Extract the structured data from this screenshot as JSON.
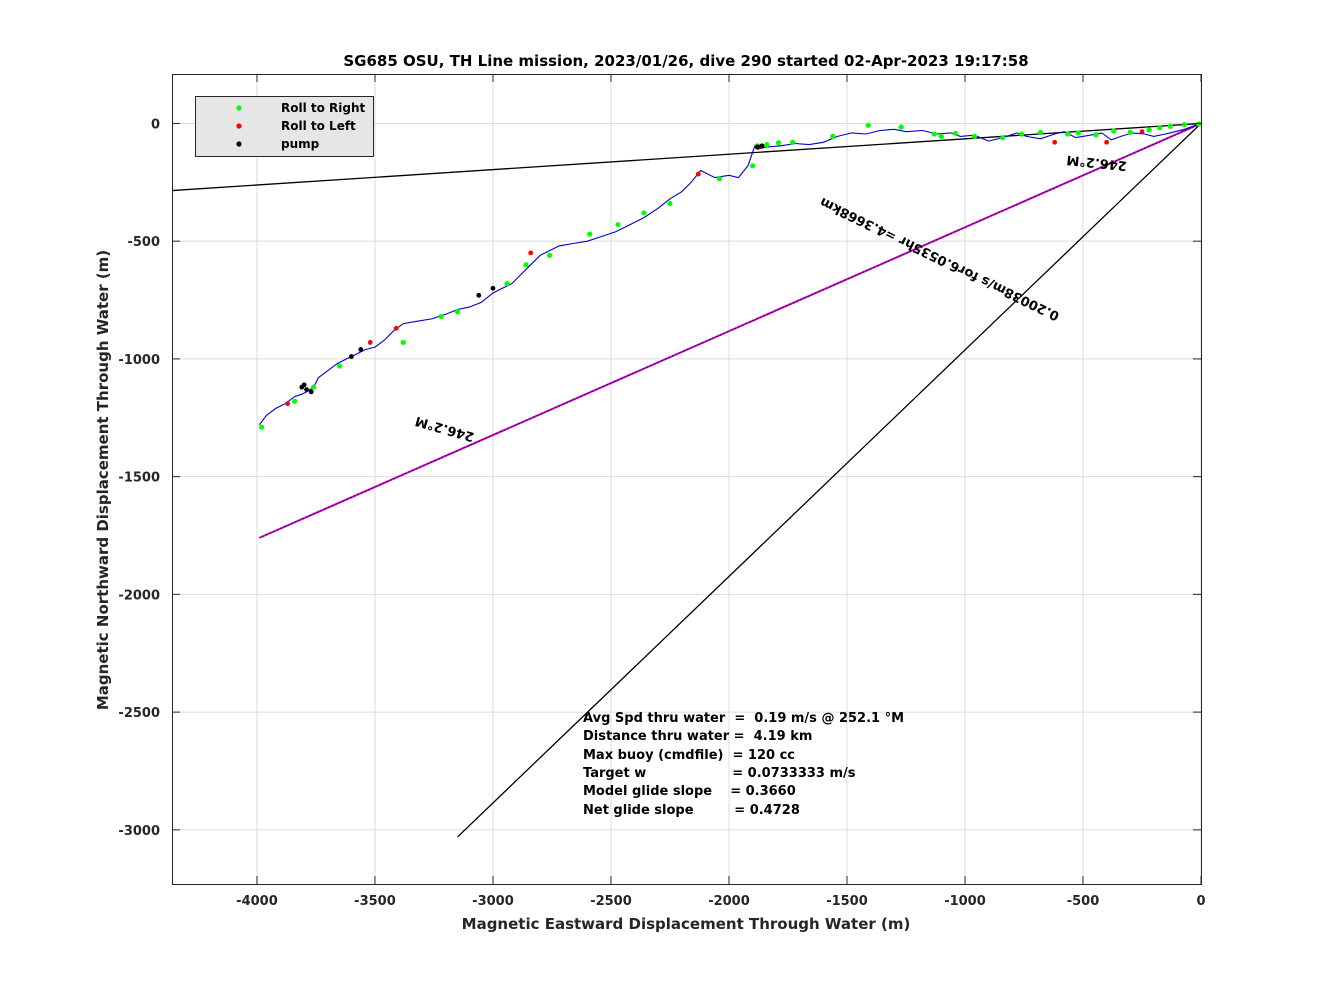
{
  "chart_data": {
    "type": "line",
    "title": "SG685 OSU, TH Line mission, 2023/01/26, dive 290 started 02-Apr-2023 19:17:58",
    "xlabel": "Magnetic Eastward Displacement Through Water (m)",
    "ylabel": "Magnetic Northward Displacement Through Water (m)",
    "xlim": [
      -4360,
      0
    ],
    "ylim": [
      -3230,
      210
    ],
    "grid": true,
    "x_ticks": [
      "-4000",
      "-3500",
      "-3000",
      "-2500",
      "-2000",
      "-1500",
      "-1000",
      "-500",
      "0"
    ],
    "y_ticks": [
      "0",
      "-500",
      "-1000",
      "-1500",
      "-2000",
      "-2500",
      "-3000"
    ],
    "legend": {
      "placement": "top-left",
      "entries": [
        {
          "label": "Roll to Right",
          "color": "#00ff00"
        },
        {
          "label": "Roll to Left",
          "color": "#ff0000"
        },
        {
          "label": "pump",
          "color": "#000000"
        }
      ]
    },
    "colors": {
      "track": "#0000cc",
      "course": "#cc00cc",
      "reference": "#000000"
    },
    "track": {
      "x": [
        0,
        -30,
        -70,
        -110,
        -150,
        -200,
        -240,
        -290,
        -340,
        -380,
        -420,
        -470,
        -530,
        -580,
        -620,
        -680,
        -740,
        -780,
        -840,
        -900,
        -960,
        -1020,
        -1060,
        -1120,
        -1180,
        -1250,
        -1300,
        -1360,
        -1420,
        -1480,
        -1540,
        -1600,
        -1660,
        -1720,
        -1780,
        -1840,
        -1880,
        -1890,
        -1920,
        -1960,
        -2000,
        -2060,
        -2120,
        -2160,
        -2200,
        -2250,
        -2300,
        -2360,
        -2420,
        -2480,
        -2540,
        -2600,
        -2660,
        -2720,
        -2760,
        -2800,
        -2840,
        -2880,
        -2920,
        -2960,
        -3000,
        -3050,
        -3100,
        -3150,
        -3200,
        -3260,
        -3320,
        -3380,
        -3420,
        -3460,
        -3500,
        -3540,
        -3580,
        -3620,
        -3660,
        -3700,
        -3740,
        -3760,
        -3790,
        -3810,
        -3840,
        -3880,
        -3920,
        -3960,
        -3990
      ],
      "y": [
        0,
        -10,
        -25,
        -35,
        -45,
        -55,
        -45,
        -40,
        -55,
        -70,
        -40,
        -50,
        -60,
        -35,
        -45,
        -65,
        -55,
        -40,
        -60,
        -75,
        -50,
        -55,
        -40,
        -45,
        -30,
        -35,
        -25,
        -30,
        -45,
        -40,
        -55,
        -80,
        -90,
        -85,
        -95,
        -100,
        -110,
        -95,
        -180,
        -230,
        -220,
        -230,
        -200,
        -250,
        -290,
        -320,
        -360,
        -400,
        -430,
        -460,
        -480,
        -500,
        -510,
        -520,
        -540,
        -560,
        -600,
        -640,
        -680,
        -700,
        -720,
        -760,
        -780,
        -790,
        -810,
        -830,
        -840,
        -850,
        -880,
        -920,
        -950,
        -960,
        -980,
        -1000,
        -1020,
        -1050,
        -1080,
        -1120,
        -1140,
        -1150,
        -1160,
        -1190,
        -1210,
        -1240,
        -1280
      ]
    },
    "roll_right": {
      "x": [
        -10,
        -70,
        -130,
        -175,
        -220,
        -300,
        -370,
        -445,
        -520,
        -565,
        -680,
        -760,
        -840,
        -960,
        -1040,
        -1100,
        -1130,
        -1270,
        -1410,
        -1560,
        -1730,
        -1790,
        -1840,
        -1880,
        -1900,
        -2040,
        -2250,
        -2360,
        -2470,
        -2590,
        -2760,
        -2860,
        -2940,
        -3150,
        -3220,
        -3380,
        -3650,
        -3760,
        -3840,
        -3980
      ],
      "y": [
        -2,
        -5,
        -12,
        -18,
        -28,
        -38,
        -32,
        -48,
        -40,
        -45,
        -38,
        -45,
        -60,
        -55,
        -42,
        -55,
        -45,
        -15,
        -8,
        -55,
        -80,
        -82,
        -90,
        -95,
        -180,
        -235,
        -340,
        -380,
        -430,
        -470,
        -560,
        -600,
        -680,
        -800,
        -820,
        -930,
        -1030,
        -1120,
        -1180,
        -1290
      ]
    },
    "roll_left": {
      "x": [
        -250,
        -400,
        -620,
        -1870,
        -2130,
        -2840,
        -3410,
        -3520,
        -3870
      ],
      "y": [
        -35,
        -80,
        -80,
        -100,
        -215,
        -550,
        -870,
        -930,
        -1190
      ]
    },
    "pump": {
      "x": [
        -1860,
        -1880,
        -3000,
        -3060,
        -3560,
        -3600,
        -3800,
        -3810,
        -3790,
        -3770
      ],
      "y": [
        -95,
        -100,
        -700,
        -730,
        -960,
        -990,
        -1110,
        -1120,
        -1130,
        -1140
      ]
    },
    "course_line": {
      "x": [
        0,
        -3990
      ],
      "y": [
        0,
        -1760
      ]
    },
    "reference_lines": [
      {
        "x": [
          0,
          -4360
        ],
        "y": [
          0,
          -285
        ]
      },
      {
        "x": [
          0,
          -3150
        ],
        "y": [
          0,
          -3030
        ]
      }
    ],
    "annotations": [
      {
        "text": "246.2°M",
        "x": -440,
        "y": -150,
        "angle_deg": 0
      },
      {
        "text": "0.20038m/s for6.0535hr =4.3668km",
        "x": -1100,
        "y": -560,
        "angle_deg": 0
      },
      {
        "text": "246.2°M",
        "x": -3200,
        "y": -1280,
        "angle_deg": 0
      }
    ],
    "stats": [
      "Avg Spd thru water  =  0.19 m/s @ 252.1 °M",
      "Distance thru water =  4.19 km",
      "Max buoy (cmdfile)  = 120 cc",
      "Target w                   = 0.0733333 m/s",
      "Model glide slope    = 0.3660",
      "Net glide slope         = 0.4728"
    ]
  }
}
